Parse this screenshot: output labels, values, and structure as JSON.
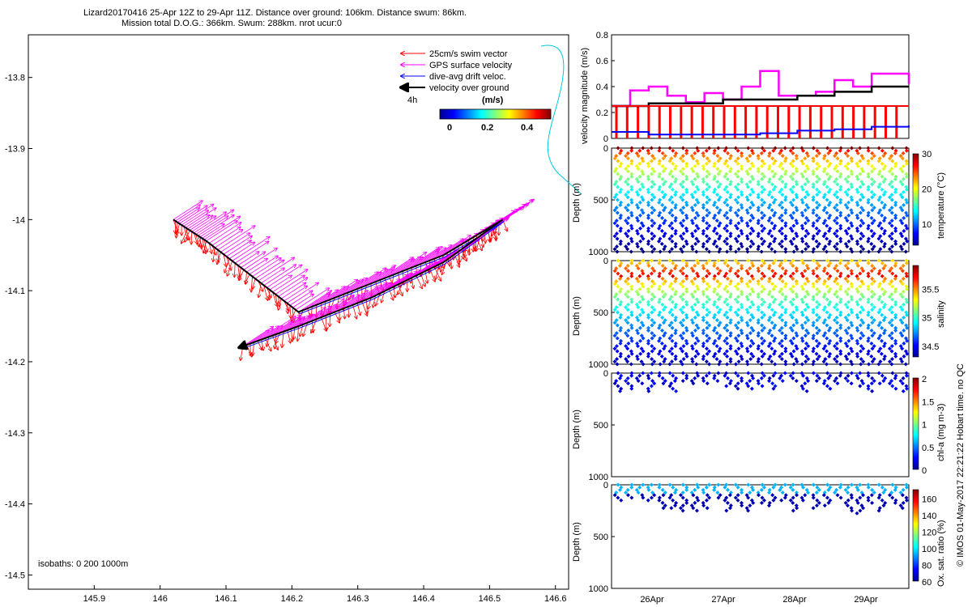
{
  "title": {
    "line1": "Lizard20170416 25-Apr 12Z to 29-Apr 11Z. Distance over ground: 106km. Distance swum: 86km.",
    "line2": "Mission total D.O.G.: 366km. Swum: 288km. nrot ucur:0"
  },
  "stamp": "© IMOS 01-May-2017 22:21:22 Hobart time. no QC",
  "colors": {
    "swim": "#ff0000",
    "gps": "#ff00ff",
    "drift": "#0000ff",
    "over_ground": "#000000",
    "track_line": "#00c8dc"
  },
  "chart_data": [
    {
      "type": "scatter",
      "name": "map",
      "title": "Lizard20170416 25-Apr 12Z to 29-Apr 11Z",
      "xlabel": "",
      "ylabel": "",
      "xlim": [
        145.8,
        146.62
      ],
      "ylim": [
        -14.52,
        -13.74
      ],
      "xticks": [
        "145.9",
        "146",
        "146.1",
        "146.2",
        "146.3",
        "146.4",
        "146.5",
        "146.6"
      ],
      "xtick_values": [
        145.9,
        146.0,
        146.1,
        146.2,
        146.3,
        146.4,
        146.5,
        146.6
      ],
      "yticks": [
        "-13.8",
        "-13.9",
        "-14",
        "-14.1",
        "-14.2",
        "-14.3",
        "-14.4",
        "-14.5"
      ],
      "ytick_values": [
        -13.8,
        -13.9,
        -14.0,
        -14.1,
        -14.2,
        -14.3,
        -14.4,
        -14.5
      ],
      "legend": [
        {
          "label": "25cm/s swim vector",
          "color": "#ff0000"
        },
        {
          "label": "GPS surface velocity",
          "color": "#ff00ff"
        },
        {
          "label": "dive-avg drift veloc.",
          "color": "#0000ff"
        },
        {
          "label": "velocity over ground",
          "color": "#000000"
        }
      ],
      "legend_time": "4h",
      "colorbar": {
        "label": "(m/s)",
        "ticks": [
          "0",
          "0.2",
          "0.4"
        ]
      },
      "isobaths": "isobaths: 0   200  1000m",
      "track": [
        [
          146.02,
          -14.0
        ],
        [
          146.07,
          -14.03
        ],
        [
          146.14,
          -14.08
        ],
        [
          146.21,
          -14.13
        ],
        [
          146.32,
          -14.09
        ],
        [
          146.43,
          -14.05
        ],
        [
          146.52,
          -14.0
        ],
        [
          146.43,
          -14.06
        ],
        [
          146.32,
          -14.11
        ],
        [
          146.21,
          -14.15
        ],
        [
          146.12,
          -14.18
        ]
      ]
    },
    {
      "type": "line",
      "name": "velocity",
      "ylabel": "velocity magnitude (m/s)",
      "ylim": [
        0,
        0.8
      ],
      "yticks": [
        "0",
        "0.2",
        "0.4",
        "0.6",
        "0.8"
      ],
      "ytick_values": [
        0,
        0.2,
        0.4,
        0.6,
        0.8
      ],
      "xlim": [
        0,
        4
      ],
      "series": [
        {
          "name": "GPS surface velocity",
          "color": "#ff00ff",
          "x": [
            0,
            0.25,
            0.5,
            0.75,
            1.0,
            1.25,
            1.5,
            1.75,
            2.0,
            2.25,
            2.5,
            2.75,
            3.0,
            3.25,
            3.5,
            3.75,
            4.0
          ],
          "values": [
            0.25,
            0.37,
            0.4,
            0.33,
            0.28,
            0.35,
            0.3,
            0.4,
            0.52,
            0.33,
            0.33,
            0.36,
            0.45,
            0.4,
            0.5,
            0.5,
            0.42
          ]
        },
        {
          "name": "velocity over ground",
          "color": "#000000",
          "x": [
            0,
            0.5,
            1.0,
            1.5,
            2.0,
            2.5,
            3.0,
            3.5,
            4.0
          ],
          "values": [
            0.25,
            0.27,
            0.27,
            0.3,
            0.3,
            0.33,
            0.36,
            0.4,
            0.4
          ]
        },
        {
          "name": "25cm/s swim vector",
          "color": "#ff0000",
          "x": [
            0,
            4.0
          ],
          "values": [
            0.25,
            0.25
          ]
        },
        {
          "name": "dive-avg drift veloc.",
          "color": "#0000ff",
          "x": [
            0,
            0.5,
            1.0,
            1.5,
            2.0,
            2.5,
            3.0,
            3.5,
            4.0
          ],
          "values": [
            0.05,
            0.03,
            0.03,
            0.03,
            0.04,
            0.06,
            0.07,
            0.09,
            0.1
          ]
        }
      ]
    },
    {
      "type": "scatter",
      "name": "temperature",
      "ylabel": "Depth (m)",
      "ylim": [
        1000,
        0
      ],
      "yticks": [
        "0",
        "500",
        "1000"
      ],
      "ytick_values": [
        0,
        500,
        1000
      ],
      "colorbar": {
        "label": "temperature (°C)",
        "ticks": [
          "10",
          "20",
          "30"
        ],
        "tick_values": [
          10,
          20,
          30
        ],
        "range": [
          4,
          30
        ]
      },
      "profiles": 27,
      "depth_range": [
        0,
        1000
      ],
      "value_top": 29,
      "value_bottom": 5,
      "xticks": [
        "26Apr",
        "27Apr",
        "28Apr",
        "29Apr"
      ]
    },
    {
      "type": "scatter",
      "name": "salinity",
      "ylabel": "Depth (m)",
      "ylim": [
        1000,
        0
      ],
      "yticks": [
        "0",
        "500",
        "1000"
      ],
      "ytick_values": [
        0,
        500,
        1000
      ],
      "colorbar": {
        "label": "salinity",
        "ticks": [
          "34.5",
          "35",
          "35.5"
        ],
        "tick_values": [
          34.5,
          35,
          35.5
        ],
        "range": [
          34.3,
          35.9
        ]
      },
      "profiles": 27,
      "depth_range": [
        0,
        1000
      ],
      "value_top": 35.3,
      "value_mid": 35.7,
      "value_bottom": 34.4,
      "xticks": [
        "26Apr",
        "27Apr",
        "28Apr",
        "29Apr"
      ]
    },
    {
      "type": "scatter",
      "name": "chlorophyll",
      "ylabel": "Depth (m)",
      "ylim": [
        1000,
        0
      ],
      "yticks": [
        "0",
        "500",
        "1000"
      ],
      "ytick_values": [
        0,
        500,
        1000
      ],
      "colorbar": {
        "label": "chl-a (mg m-3)",
        "ticks": [
          "0",
          "0.5",
          "1",
          "1.5",
          "2"
        ],
        "tick_values": [
          0,
          0.5,
          1,
          1.5,
          2
        ],
        "range": [
          0,
          2
        ]
      },
      "profiles": 27,
      "depth_range": [
        0,
        200
      ],
      "xticks": [
        "26Apr",
        "27Apr",
        "28Apr",
        "29Apr"
      ]
    },
    {
      "type": "scatter",
      "name": "oxygen",
      "ylabel": "Depth (m)",
      "ylim": [
        1000,
        0
      ],
      "yticks": [
        "0",
        "500",
        "1000"
      ],
      "ytick_values": [
        0,
        500,
        1000
      ],
      "colorbar": {
        "label": "Ox. sat. ratio (%)",
        "ticks": [
          "60",
          "80",
          "100",
          "120",
          "140",
          "160"
        ],
        "tick_values": [
          60,
          80,
          100,
          120,
          140,
          160
        ],
        "range": [
          60,
          170
        ]
      },
      "profiles": 27,
      "depth_range": [
        0,
        300
      ],
      "xticks": [
        "26Apr",
        "27Apr",
        "28Apr",
        "29Apr"
      ]
    }
  ]
}
